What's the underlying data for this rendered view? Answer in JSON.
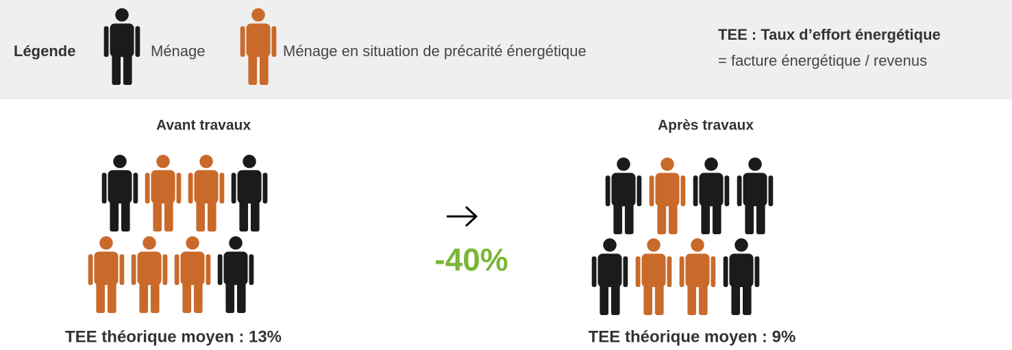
{
  "legend": {
    "title": "Légende",
    "items": [
      {
        "label": "Ménage",
        "color": "#1b1b1b"
      },
      {
        "label": "Ménage en situation de précarité énergétique",
        "color": "#c96a2b"
      }
    ],
    "definition": {
      "title": "TEE : Taux d’effort énergétique",
      "text": "= facture énergétique / revenus"
    }
  },
  "panels": [
    {
      "title": "Avant travaux",
      "rows": [
        [
          "#1b1b1b",
          "#c96a2b",
          "#c96a2b",
          "#1b1b1b"
        ],
        [
          "#c96a2b",
          "#c96a2b",
          "#c96a2b",
          "#1b1b1b"
        ]
      ],
      "caption": "TEE théorique moyen : 13%"
    },
    {
      "title": "Après travaux",
      "rows": [
        [
          "#1b1b1b",
          "#c96a2b",
          "#1b1b1b",
          "#1b1b1b"
        ],
        [
          "#1b1b1b",
          "#c96a2b",
          "#c96a2b",
          "#1b1b1b"
        ]
      ],
      "caption": "TEE théorique moyen : 9%"
    }
  ],
  "change": {
    "value": "-40%",
    "color": "#7ab638"
  }
}
